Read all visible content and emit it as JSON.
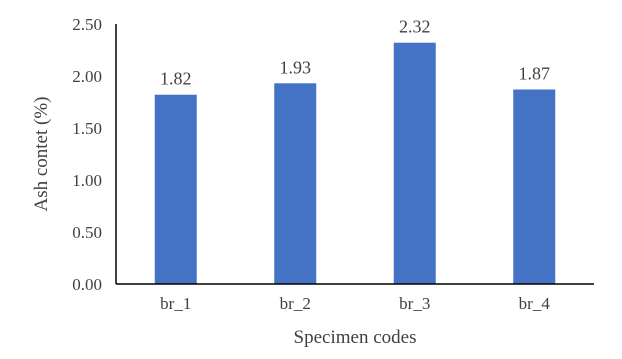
{
  "chart_data": {
    "type": "bar",
    "title": "",
    "categories": [
      "br_1",
      "br_2",
      "br_3",
      "br_4"
    ],
    "values": [
      1.82,
      1.93,
      2.32,
      1.87
    ],
    "data_labels": [
      "1.82",
      "1.93",
      "2.32",
      "1.87"
    ],
    "xlabel": "Specimen codes",
    "ylabel": "Ash contet (%)",
    "ylim": [
      0,
      2.5
    ],
    "y_ticks": [
      "0.00",
      "0.50",
      "1.00",
      "1.50",
      "2.00",
      "2.50"
    ],
    "grid": false,
    "legend": "none",
    "bar_color": "#4472C4",
    "axis_color": "#000000"
  }
}
